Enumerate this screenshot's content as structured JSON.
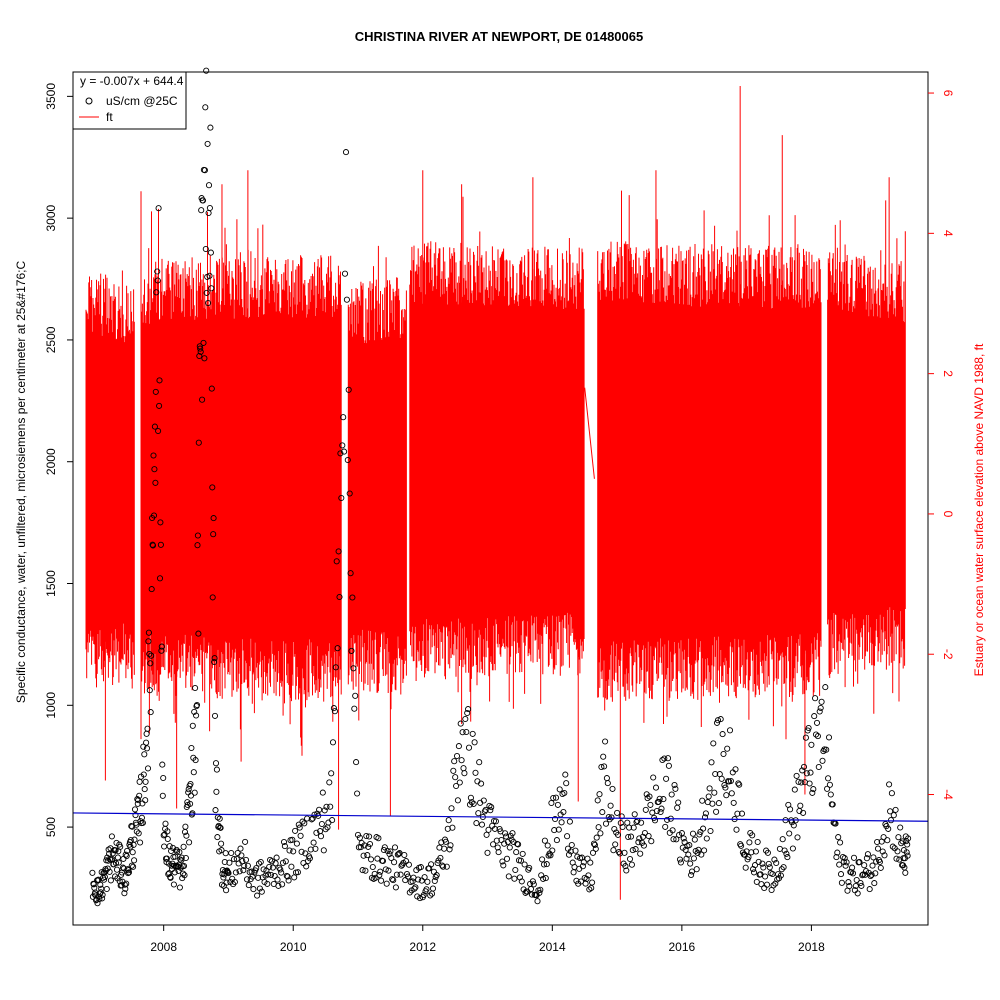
{
  "chart_data": {
    "type": "scatter",
    "title": "CHRISTINA RIVER AT NEWPORT, DE 01480065",
    "ylabel": "Specific conductance, water, unfiltered, microsiemens per centimeter at 25&#176;C",
    "y2label": "Estuary or ocean water surface elevation above NAVD 1988, ft",
    "xlim": [
      2006.6,
      2019.8
    ],
    "ylim": [
      98,
      3600
    ],
    "y2lim": [
      -5.86,
      6.3
    ],
    "x_ticks": [
      2008,
      2010,
      2012,
      2014,
      2016,
      2018
    ],
    "y_ticks": [
      500,
      1000,
      1500,
      2000,
      2500,
      3000,
      3500
    ],
    "y2_ticks": [
      -4,
      -2,
      0,
      2,
      4,
      6
    ],
    "legend": {
      "position": "top-left",
      "title": "y = -0.007x + 644.4",
      "entries": [
        {
          "label": "uS/cm @25C",
          "symbol": "circle",
          "color": "#000000"
        },
        {
          "label": "ft",
          "symbol": "line",
          "color": "#ff0000"
        }
      ]
    },
    "trend_line": {
      "label": "y = -0.007x + 644.4",
      "color": "#0000cc",
      "x": [
        2006.6,
        2019.8
      ],
      "y": [
        558,
        524
      ]
    },
    "conductance_monthly": {
      "name": "uS/cm @25C",
      "color": "#000000",
      "x": [
        2006.9,
        2007.0,
        2007.1,
        2007.2,
        2007.3,
        2007.4,
        2007.5,
        2007.6,
        2007.7,
        2007.8,
        2007.9,
        2008.0,
        2008.1,
        2008.2,
        2008.3,
        2008.4,
        2008.5,
        2008.6,
        2008.7,
        2008.8,
        2008.9,
        2009.0,
        2009.2,
        2009.4,
        2009.6,
        2009.8,
        2010.0,
        2010.2,
        2010.4,
        2010.6,
        2010.8,
        2011.0,
        2011.2,
        2011.4,
        2011.6,
        2011.8,
        2012.0,
        2012.2,
        2012.4,
        2012.6,
        2012.8,
        2013.0,
        2013.2,
        2013.4,
        2013.6,
        2013.8,
        2014.0,
        2014.2,
        2014.4,
        2014.6,
        2014.8,
        2015.0,
        2015.2,
        2015.4,
        2015.6,
        2015.8,
        2016.0,
        2016.2,
        2016.4,
        2016.6,
        2016.8,
        2017.0,
        2017.2,
        2017.4,
        2017.6,
        2017.8,
        2018.0,
        2018.2,
        2018.4,
        2018.6,
        2018.8,
        2019.0,
        2019.2,
        2019.4
      ],
      "values": [
        280,
        230,
        300,
        380,
        350,
        300,
        420,
        500,
        700,
        1200,
        3000,
        450,
        350,
        330,
        320,
        600,
        900,
        3050,
        3300,
        700,
        350,
        300,
        380,
        280,
        300,
        340,
        380,
        450,
        500,
        600,
        2800,
        400,
        380,
        360,
        330,
        300,
        270,
        300,
        450,
        900,
        700,
        500,
        420,
        380,
        300,
        250,
        500,
        600,
        300,
        300,
        700,
        450,
        420,
        500,
        600,
        650,
        420,
        380,
        600,
        800,
        700,
        400,
        350,
        300,
        450,
        600,
        800,
        900,
        380,
        300,
        300,
        350,
        600,
        380
      ]
    },
    "elevation_envelope": {
      "name": "ft",
      "color": "#ff0000",
      "segments": [
        {
          "x": [
            2006.8,
            2007.55
          ],
          "high": [
            3.5,
            3.3
          ],
          "low": [
            -2.5,
            -2.4
          ]
        },
        {
          "x": [
            2007.65,
            2010.75
          ],
          "high": [
            3.6,
            3.7
          ],
          "low": [
            -2.6,
            -2.7
          ]
        },
        {
          "x": [
            2010.85,
            2011.75
          ],
          "high": [
            3.3,
            3.4
          ],
          "low": [
            -2.5,
            -2.6
          ]
        },
        {
          "x": [
            2011.8,
            2014.5
          ],
          "high": [
            3.9,
            3.8
          ],
          "low": [
            -2.4,
            -2.3
          ]
        },
        {
          "x": [
            2014.5,
            2014.65
          ],
          "high": [
            1.8,
            0.5
          ],
          "low": [
            1.8,
            0.5
          ]
        },
        {
          "x": [
            2014.7,
            2018.15
          ],
          "high": [
            3.9,
            3.8
          ],
          "low": [
            -2.7,
            -2.6
          ]
        },
        {
          "x": [
            2018.25,
            2019.45
          ],
          "high": [
            3.8,
            3.6
          ],
          "low": [
            -2.3,
            -2.2
          ]
        }
      ],
      "spikes": [
        {
          "x": 2007.1,
          "low": -3.8
        },
        {
          "x": 2007.65,
          "high": 4.6
        },
        {
          "x": 2008.2,
          "low": -4.2
        },
        {
          "x": 2008.9,
          "high": 4.7
        },
        {
          "x": 2009.3,
          "high": 4.9
        },
        {
          "x": 2010.7,
          "low": -4.5
        },
        {
          "x": 2011.5,
          "low": -4.3
        },
        {
          "x": 2012.0,
          "high": 4.9
        },
        {
          "x": 2012.6,
          "high": 4.7
        },
        {
          "x": 2013.7,
          "high": 4.8
        },
        {
          "x": 2014.4,
          "low": -4.1
        },
        {
          "x": 2015.05,
          "low": -5.5
        },
        {
          "x": 2015.6,
          "high": 4.9
        },
        {
          "x": 2016.9,
          "high": 6.1
        },
        {
          "x": 2017.55,
          "high": 5.4
        },
        {
          "x": 2017.9,
          "low": -4.0
        },
        {
          "x": 2019.2,
          "high": 4.8
        }
      ]
    }
  }
}
